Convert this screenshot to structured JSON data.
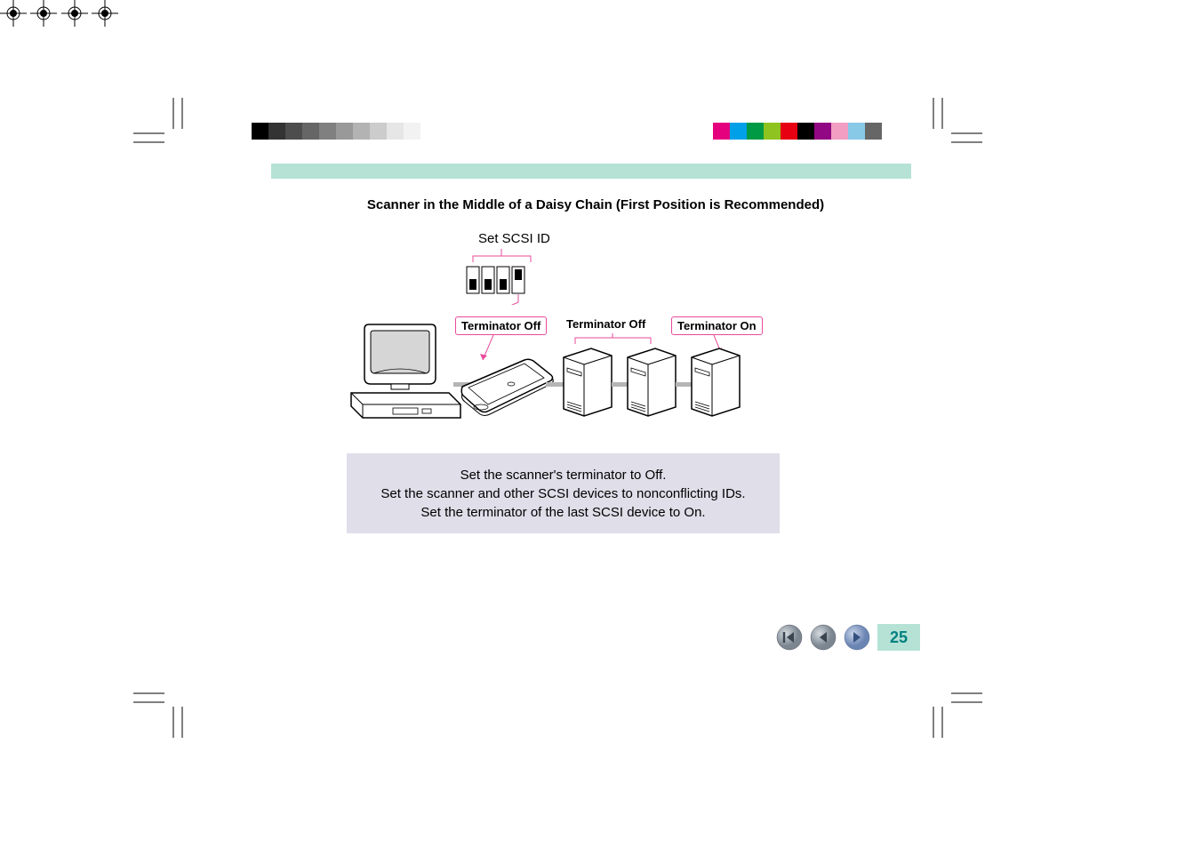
{
  "title": "Scanner in the Middle of a Daisy Chain (First Position is Recommended)",
  "diagram": {
    "scsi_id_label": "Set SCSI ID",
    "terminator_off_1": "Terminator Off",
    "terminator_off_2": "Terminator Off",
    "terminator_on": "Terminator On",
    "label_font_size": 13,
    "border_color": "#e84a9a",
    "callout_color": "#e84a9a",
    "dip_fill": "#ffffff",
    "dip_stroke": "#000000",
    "dip_active_fill": "#000000",
    "cable_color": "#b5b5b5"
  },
  "instructions": {
    "line1": "Set the scanner's terminator to Off.",
    "line2": "Set the scanner and other SCSI devices to nonconflicting IDs.",
    "line3": "Set the terminator of the last SCSI device to On.",
    "bg_color": "#dfdee9",
    "text_color": "#000000",
    "font_size": 15
  },
  "nav": {
    "first_color_outer": "#9aa6b0",
    "first_color_inner": "#677078",
    "prev_color_outer": "#9aa6b0",
    "prev_color_inner": "#677078",
    "next_color_outer": "#859bc5",
    "next_color_inner": "#5a76a8",
    "page_bg": "#b5e2d5",
    "page_text_color": "#008080",
    "page_number": "25"
  },
  "color_bars": {
    "left_swatches": [
      "#000000",
      "#333333",
      "#4d4d4d",
      "#666666",
      "#808080",
      "#999999",
      "#b3b3b3",
      "#cccccc",
      "#e6e6e6",
      "#f2f2f2",
      "#ffffff"
    ],
    "right_swatches": [
      "#e5007e",
      "#00a0e9",
      "#009944",
      "#8fc31f",
      "#e60012",
      "#000000",
      "#920783",
      "#f19ec2",
      "#89c9e8",
      "#666666"
    ]
  },
  "header_bar_color": "#b5e2d5"
}
